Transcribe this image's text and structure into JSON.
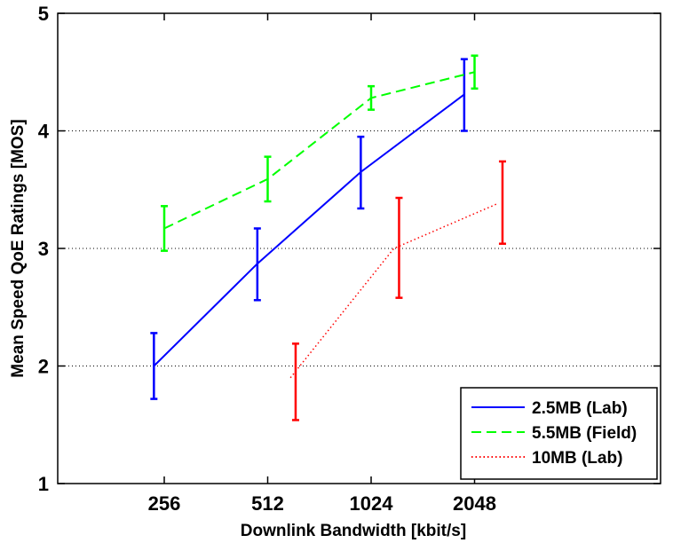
{
  "chart_data": {
    "type": "line",
    "xlabel": "Downlink Bandwidth [kbit/s]",
    "ylabel": "Mean Speed QoE Ratings [MOS]",
    "categories": [
      "256",
      "512",
      "1024",
      "2048"
    ],
    "ylim": [
      1,
      5
    ],
    "yticks": [
      "1",
      "2",
      "3",
      "4",
      "5"
    ],
    "grid": "horizontal dotted",
    "legend_position": "bottom-right",
    "series": [
      {
        "name": "2.5MB (Lab)",
        "color": "#0000ff",
        "line_style": "solid",
        "x_offset": -0.1,
        "values": [
          2.0,
          2.87,
          3.65,
          4.31
        ],
        "lower": [
          1.72,
          2.56,
          3.34,
          4.0
        ],
        "upper": [
          2.28,
          3.17,
          3.95,
          4.61
        ]
      },
      {
        "name": "5.5MB (Field)",
        "color": "#00ff00",
        "line_style": "dashed",
        "x_offset": 0.0,
        "values": [
          3.17,
          3.59,
          4.28,
          4.5
        ],
        "lower": [
          2.98,
          3.4,
          4.18,
          4.36
        ],
        "upper": [
          3.36,
          3.78,
          4.38,
          4.64
        ]
      },
      {
        "name": "10MB (Lab)",
        "color": "#ff0000",
        "line_style": "dotted",
        "x_offset": 0.22,
        "values": [
          null,
          1.9,
          3.0,
          3.38
        ],
        "lower": [
          null,
          1.54,
          2.58,
          3.04
        ],
        "upper": [
          null,
          2.19,
          3.43,
          3.74
        ]
      }
    ]
  }
}
